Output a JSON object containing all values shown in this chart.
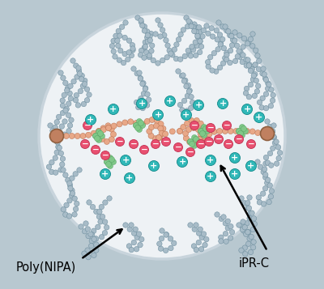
{
  "fig_width": 4.0,
  "fig_height": 3.57,
  "dpi": 100,
  "bg_color": "#b8c8d0",
  "circle_bg_color": "#eef2f5",
  "circle_edge_color": "#c8d4dc",
  "gray_bead_color": "#a8bcc8",
  "gray_bead_edge_color": "#7090a0",
  "pink_chain_color": "#e8a888",
  "pink_chain_edge_color": "#c07858",
  "anchor_bead_color": "#c08060",
  "anchor_bead_edge_color": "#906040",
  "crosslink_color": "#80c888",
  "crosslink_edge_color": "#50a060",
  "neg_ion_color": "#e85070",
  "neg_ion_edge_color": "#c03050",
  "pos_ion_color": "#30b8b8",
  "pos_ion_edge_color": "#108888",
  "label_poly_nipa": "Poly(NIPA)",
  "label_ipr_c": "iPR-C",
  "arrow_color": "black",
  "text_color": "black",
  "font_size": 10.5
}
